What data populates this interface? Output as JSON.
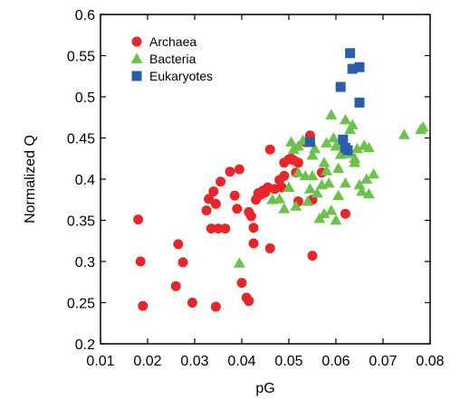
{
  "chart_data": {
    "type": "scatter",
    "xlabel": "pG",
    "ylabel": "Normalized Q",
    "xlim": [
      0.01,
      0.08
    ],
    "ylim": [
      0.2,
      0.6
    ],
    "xticks": [
      "0.01",
      "0.02",
      "0.03",
      "0.04",
      "0.05",
      "0.06",
      "0.07",
      "0.08"
    ],
    "yticks": [
      "0.2",
      "0.25",
      "0.3",
      "0.35",
      "0.4",
      "0.45",
      "0.5",
      "0.55",
      "0.6"
    ],
    "legend_position": "top-left",
    "grid": false,
    "series": [
      {
        "name": "Archaea",
        "marker": "circle",
        "color": "#e8262a",
        "points": [
          [
            0.018,
            0.351
          ],
          [
            0.0185,
            0.3
          ],
          [
            0.019,
            0.246
          ],
          [
            0.0265,
            0.321
          ],
          [
            0.026,
            0.27
          ],
          [
            0.0275,
            0.299
          ],
          [
            0.0295,
            0.25
          ],
          [
            0.0325,
            0.362
          ],
          [
            0.033,
            0.376
          ],
          [
            0.0335,
            0.34
          ],
          [
            0.034,
            0.385
          ],
          [
            0.0345,
            0.37
          ],
          [
            0.035,
            0.34
          ],
          [
            0.0345,
            0.245
          ],
          [
            0.0355,
            0.397
          ],
          [
            0.0365,
            0.34
          ],
          [
            0.0375,
            0.409
          ],
          [
            0.0385,
            0.38
          ],
          [
            0.039,
            0.364
          ],
          [
            0.0395,
            0.412
          ],
          [
            0.04,
            0.274
          ],
          [
            0.041,
            0.256
          ],
          [
            0.0415,
            0.252
          ],
          [
            0.0415,
            0.36
          ],
          [
            0.042,
            0.355
          ],
          [
            0.0425,
            0.341
          ],
          [
            0.0425,
            0.322
          ],
          [
            0.043,
            0.375
          ],
          [
            0.044,
            0.381
          ],
          [
            0.0435,
            0.383
          ],
          [
            0.0445,
            0.386
          ],
          [
            0.045,
            0.384
          ],
          [
            0.0455,
            0.39
          ],
          [
            0.046,
            0.316
          ],
          [
            0.046,
            0.436
          ],
          [
            0.047,
            0.388
          ],
          [
            0.048,
            0.399
          ],
          [
            0.0485,
            0.39
          ],
          [
            0.049,
            0.42
          ],
          [
            0.049,
            0.404
          ],
          [
            0.05,
            0.424
          ],
          [
            0.0505,
            0.425
          ],
          [
            0.051,
            0.423
          ],
          [
            0.0515,
            0.408
          ],
          [
            0.052,
            0.373
          ],
          [
            0.052,
            0.42
          ],
          [
            0.0535,
            0.445
          ],
          [
            0.0545,
            0.453
          ],
          [
            0.055,
            0.375
          ],
          [
            0.055,
            0.307
          ],
          [
            0.057,
            0.408
          ],
          [
            0.062,
            0.358
          ]
        ]
      },
      {
        "name": "Bacteria",
        "marker": "triangle",
        "color": "#6cc24a",
        "points": [
          [
            0.0395,
            0.298
          ],
          [
            0.0465,
            0.375
          ],
          [
            0.048,
            0.376
          ],
          [
            0.049,
            0.364
          ],
          [
            0.05,
            0.39
          ],
          [
            0.0505,
            0.445
          ],
          [
            0.051,
            0.436
          ],
          [
            0.0515,
            0.367
          ],
          [
            0.052,
            0.408
          ],
          [
            0.052,
            0.44
          ],
          [
            0.053,
            0.447
          ],
          [
            0.0535,
            0.404
          ],
          [
            0.054,
            0.373
          ],
          [
            0.0545,
            0.388
          ],
          [
            0.055,
            0.404
          ],
          [
            0.055,
            0.429
          ],
          [
            0.0555,
            0.437
          ],
          [
            0.056,
            0.383
          ],
          [
            0.0565,
            0.352
          ],
          [
            0.057,
            0.393
          ],
          [
            0.0575,
            0.42
          ],
          [
            0.0575,
            0.358
          ],
          [
            0.058,
            0.444
          ],
          [
            0.058,
            0.41
          ],
          [
            0.0585,
            0.395
          ],
          [
            0.059,
            0.478
          ],
          [
            0.0595,
            0.45
          ],
          [
            0.059,
            0.362
          ],
          [
            0.06,
            0.44
          ],
          [
            0.06,
            0.35
          ],
          [
            0.0605,
            0.413
          ],
          [
            0.061,
            0.43
          ],
          [
            0.0605,
            0.38
          ],
          [
            0.0615,
            0.443
          ],
          [
            0.062,
            0.472
          ],
          [
            0.062,
            0.395
          ],
          [
            0.063,
            0.431
          ],
          [
            0.063,
            0.46
          ],
          [
            0.0635,
            0.466
          ],
          [
            0.064,
            0.425
          ],
          [
            0.064,
            0.42
          ],
          [
            0.0645,
            0.437
          ],
          [
            0.065,
            0.393
          ],
          [
            0.0655,
            0.385
          ],
          [
            0.066,
            0.441
          ],
          [
            0.0665,
            0.4
          ],
          [
            0.067,
            0.438
          ],
          [
            0.067,
            0.382
          ],
          [
            0.068,
            0.406
          ],
          [
            0.0745,
            0.454
          ],
          [
            0.078,
            0.46
          ],
          [
            0.0785,
            0.463
          ]
        ]
      },
      {
        "name": "Eukaryotes",
        "marker": "square",
        "color": "#2a5daa",
        "points": [
          [
            0.0545,
            0.445
          ],
          [
            0.061,
            0.512
          ],
          [
            0.0615,
            0.448
          ],
          [
            0.062,
            0.438
          ],
          [
            0.0625,
            0.435
          ],
          [
            0.063,
            0.553
          ],
          [
            0.0635,
            0.534
          ],
          [
            0.065,
            0.536
          ],
          [
            0.065,
            0.493
          ]
        ]
      }
    ]
  }
}
